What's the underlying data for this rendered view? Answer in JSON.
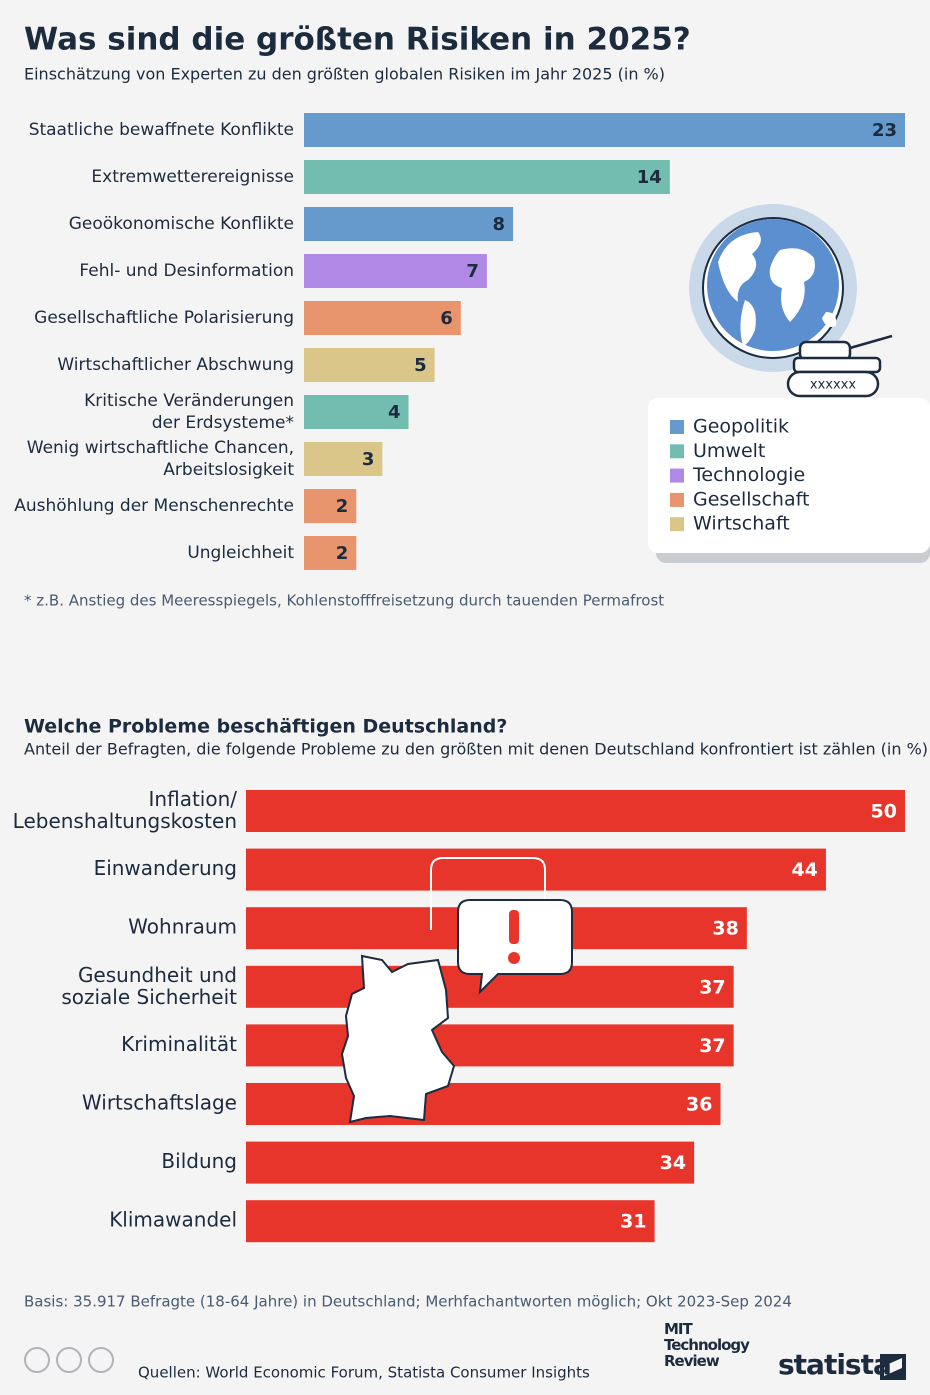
{
  "chart_data": [
    {
      "type": "bar",
      "title": "Was sind die größten Risiken in 2025?",
      "subtitle": "Einschätzung von Experten zu den größten globalen Risiken im Jahr 2025 (in %)",
      "categories": [
        "Staatliche bewaffnete Konflikte",
        "Extremwetterereignisse",
        "Geoökonomische Konflikte",
        "Fehl- und Desinformation",
        "Gesellschaftliche Polarisierung",
        "Wirtschaftlicher Abschwung",
        "Kritische Veränderungen\nder Erdsysteme*",
        "Wenig wirtschaftliche Chancen,\nArbeitslosigkeit",
        "Aushöhlung der Menschenrechte",
        "Ungleichheit"
      ],
      "values": [
        23,
        14,
        8,
        7,
        6,
        5,
        4,
        3,
        2,
        2
      ],
      "colors": [
        "#6699cc",
        "#72bcb0",
        "#6699cc",
        "#b088e6",
        "#e8956e",
        "#d9c688",
        "#72bcb0",
        "#d9c688",
        "#e8956e",
        "#e8956e"
      ],
      "legend": [
        {
          "name": "Geopolitik",
          "color": "#6699cc"
        },
        {
          "name": "Umwelt",
          "color": "#72bcb0"
        },
        {
          "name": "Technologie",
          "color": "#b088e6"
        },
        {
          "name": "Gesellschaft",
          "color": "#e8956e"
        },
        {
          "name": "Wirtschaft",
          "color": "#d9c688"
        }
      ],
      "note": "* z.B. Anstieg des Meeresspiegels, Kohlenstofffreisetzung durch tauenden Permafrost"
    },
    {
      "type": "bar",
      "title": "Welche Probleme beschäftigen Deutschland?",
      "subtitle": "Anteil der Befragten, die folgende Probleme zu den größten mit denen Deutschland konfrontiert ist zählen (in %)",
      "categories": [
        "Inflation/\nLebenshaltungskosten",
        "Einwanderung",
        "Wohnraum",
        "Gesundheit und\nsoziale Sicherheit",
        "Kriminalität",
        "Wirtschaftslage",
        "Bildung",
        "Klimawandel"
      ],
      "values": [
        50,
        44,
        38,
        37,
        37,
        36,
        34,
        31
      ],
      "color": "#e8352b",
      "note": "Basis: 35.917 Befragte (18-64 Jahre) in Deutschland; Merhfachantworten möglich; Okt 2023-Sep 2024"
    }
  ],
  "footer": {
    "sources": "Quellen: World Economic Forum, Statista Consumer Insights",
    "logo_mit": "MIT\nTechnology\nReview",
    "logo_statista": "statista"
  }
}
